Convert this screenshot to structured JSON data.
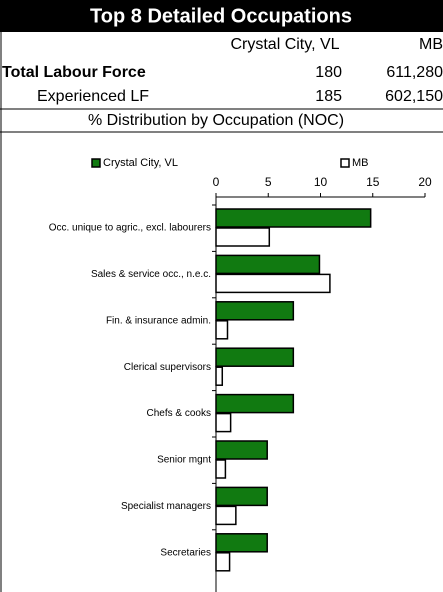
{
  "header": {
    "title": "Top 8 Detailed Occupations"
  },
  "table": {
    "columns": [
      "Crystal City, VL",
      "MB"
    ],
    "rows": [
      {
        "label": "Total Labour Force",
        "values": [
          "180",
          "611,280"
        ]
      },
      {
        "label": "Experienced LF",
        "values": [
          "185",
          "602,150"
        ]
      }
    ]
  },
  "section": {
    "title": "% Distribution by Occupation (NOC)"
  },
  "chart_data": {
    "type": "hbar",
    "categories": [
      "Occ. unique to agric., excl. labourers",
      "Sales & service occ., n.e.c.",
      "Fin. & insurance admin.",
      "Clerical supervisors",
      "Chefs & cooks",
      "Senior mgnt",
      "Specialist managers",
      "Secretaries"
    ],
    "series": [
      {
        "name": "Crystal City, VL",
        "color": "#117a11",
        "values": [
          14.8,
          9.9,
          7.4,
          7.4,
          7.4,
          4.9,
          4.9,
          4.9
        ]
      },
      {
        "name": "MB",
        "color": "#ffffff",
        "values": [
          5.1,
          10.9,
          1.1,
          0.6,
          1.4,
          0.9,
          1.9,
          1.3
        ]
      }
    ],
    "xlim": [
      0,
      20
    ],
    "xticks": [
      0,
      5,
      10,
      15,
      20
    ]
  }
}
